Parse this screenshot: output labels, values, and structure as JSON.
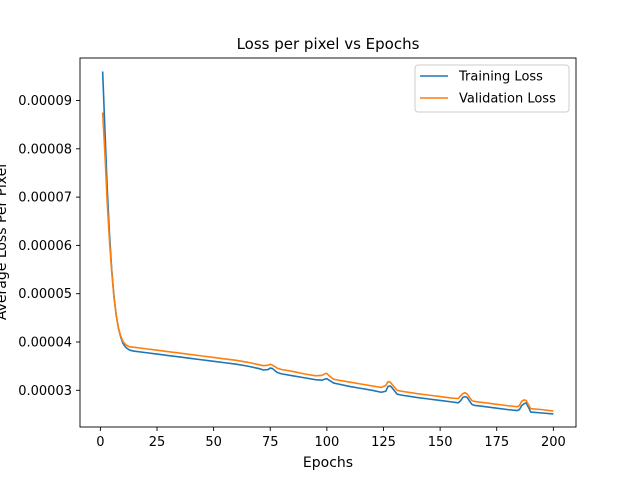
{
  "chart_data": {
    "type": "line",
    "title": "Loss per pixel vs Epochs",
    "xlabel": "Epochs",
    "ylabel": "Average Loss Per Pixel",
    "xlim": [
      -9,
      210
    ],
    "ylim": [
      2.24e-05,
      9.88e-05
    ],
    "x_ticks": [
      0,
      25,
      50,
      75,
      100,
      125,
      150,
      175,
      200
    ],
    "x_tick_labels": [
      "0",
      "25",
      "50",
      "75",
      "100",
      "125",
      "150",
      "175",
      "200"
    ],
    "y_ticks": [
      3e-05,
      4e-05,
      5e-05,
      6e-05,
      7e-05,
      8e-05,
      9e-05
    ],
    "y_tick_labels": [
      "0.00003",
      "0.00004",
      "0.00005",
      "0.00006",
      "0.00007",
      "0.00008",
      "0.00009"
    ],
    "grid": false,
    "legend_position": "upper right",
    "series": [
      {
        "name": "Training Loss",
        "color": "#1f77b4",
        "points": [
          [
            1,
            9.6e-05
          ],
          [
            2,
            8.4e-05
          ],
          [
            3,
            7.2e-05
          ],
          [
            4,
            6.25e-05
          ],
          [
            5,
            5.5e-05
          ],
          [
            6,
            4.95e-05
          ],
          [
            7,
            4.55e-05
          ],
          [
            8,
            4.28e-05
          ],
          [
            9,
            4.1e-05
          ],
          [
            10,
            3.97e-05
          ],
          [
            11,
            3.9e-05
          ],
          [
            12,
            3.86e-05
          ],
          [
            13,
            3.83e-05
          ],
          [
            15,
            3.81e-05
          ],
          [
            20,
            3.78e-05
          ],
          [
            25,
            3.75e-05
          ],
          [
            30,
            3.72e-05
          ],
          [
            35,
            3.69e-05
          ],
          [
            40,
            3.66e-05
          ],
          [
            45,
            3.63e-05
          ],
          [
            50,
            3.6e-05
          ],
          [
            55,
            3.57e-05
          ],
          [
            60,
            3.54e-05
          ],
          [
            65,
            3.5e-05
          ],
          [
            70,
            3.45e-05
          ],
          [
            72,
            3.42e-05
          ],
          [
            74,
            3.43e-05
          ],
          [
            75,
            3.46e-05
          ],
          [
            76,
            3.45e-05
          ],
          [
            78,
            3.37e-05
          ],
          [
            80,
            3.34e-05
          ],
          [
            85,
            3.3e-05
          ],
          [
            90,
            3.26e-05
          ],
          [
            95,
            3.22e-05
          ],
          [
            98,
            3.21e-05
          ],
          [
            99,
            3.23e-05
          ],
          [
            100,
            3.24e-05
          ],
          [
            101,
            3.21e-05
          ],
          [
            103,
            3.15e-05
          ],
          [
            105,
            3.13e-05
          ],
          [
            110,
            3.08e-05
          ],
          [
            115,
            3.04e-05
          ],
          [
            120,
            3e-05
          ],
          [
            124,
            2.96e-05
          ],
          [
            126,
            2.98e-05
          ],
          [
            127,
            3.08e-05
          ],
          [
            128,
            3.09e-05
          ],
          [
            129,
            3.04e-05
          ],
          [
            131,
            2.92e-05
          ],
          [
            133,
            2.9e-05
          ],
          [
            140,
            2.85e-05
          ],
          [
            145,
            2.82e-05
          ],
          [
            150,
            2.79e-05
          ],
          [
            155,
            2.76e-05
          ],
          [
            158,
            2.74e-05
          ],
          [
            159,
            2.78e-05
          ],
          [
            160,
            2.85e-05
          ],
          [
            161,
            2.87e-05
          ],
          [
            162,
            2.85e-05
          ],
          [
            164,
            2.71e-05
          ],
          [
            165,
            2.69e-05
          ],
          [
            170,
            2.66e-05
          ],
          [
            175,
            2.63e-05
          ],
          [
            180,
            2.6e-05
          ],
          [
            184,
            2.58e-05
          ],
          [
            185,
            2.6e-05
          ],
          [
            186,
            2.68e-05
          ],
          [
            187,
            2.72e-05
          ],
          [
            188,
            2.74e-05
          ],
          [
            189,
            2.65e-05
          ],
          [
            190,
            2.55e-05
          ],
          [
            195,
            2.53e-05
          ],
          [
            200,
            2.51e-05
          ]
        ]
      },
      {
        "name": "Validation Loss",
        "color": "#ff7f0e",
        "points": [
          [
            1,
            8.75e-05
          ],
          [
            2,
            7.9e-05
          ],
          [
            3,
            6.9e-05
          ],
          [
            4,
            6.1e-05
          ],
          [
            5,
            5.45e-05
          ],
          [
            6,
            4.92e-05
          ],
          [
            7,
            4.55e-05
          ],
          [
            8,
            4.28e-05
          ],
          [
            9,
            4.12e-05
          ],
          [
            10,
            4.01e-05
          ],
          [
            11,
            3.95e-05
          ],
          [
            12,
            3.92e-05
          ],
          [
            13,
            3.9e-05
          ],
          [
            15,
            3.89e-05
          ],
          [
            20,
            3.86e-05
          ],
          [
            25,
            3.83e-05
          ],
          [
            30,
            3.8e-05
          ],
          [
            35,
            3.77e-05
          ],
          [
            40,
            3.74e-05
          ],
          [
            45,
            3.71e-05
          ],
          [
            50,
            3.68e-05
          ],
          [
            55,
            3.65e-05
          ],
          [
            60,
            3.62e-05
          ],
          [
            65,
            3.58e-05
          ],
          [
            70,
            3.53e-05
          ],
          [
            72,
            3.51e-05
          ],
          [
            74,
            3.52e-05
          ],
          [
            75,
            3.54e-05
          ],
          [
            76,
            3.52e-05
          ],
          [
            78,
            3.46e-05
          ],
          [
            80,
            3.43e-05
          ],
          [
            85,
            3.39e-05
          ],
          [
            90,
            3.34e-05
          ],
          [
            95,
            3.3e-05
          ],
          [
            98,
            3.31e-05
          ],
          [
            99,
            3.34e-05
          ],
          [
            100,
            3.35e-05
          ],
          [
            101,
            3.3e-05
          ],
          [
            103,
            3.23e-05
          ],
          [
            105,
            3.21e-05
          ],
          [
            110,
            3.17e-05
          ],
          [
            115,
            3.13e-05
          ],
          [
            120,
            3.09e-05
          ],
          [
            124,
            3.06e-05
          ],
          [
            126,
            3.1e-05
          ],
          [
            127,
            3.18e-05
          ],
          [
            128,
            3.17e-05
          ],
          [
            129,
            3.11e-05
          ],
          [
            131,
            3e-05
          ],
          [
            133,
            2.98e-05
          ],
          [
            140,
            2.93e-05
          ],
          [
            145,
            2.9e-05
          ],
          [
            150,
            2.87e-05
          ],
          [
            155,
            2.84e-05
          ],
          [
            158,
            2.83e-05
          ],
          [
            159,
            2.88e-05
          ],
          [
            160,
            2.93e-05
          ],
          [
            161,
            2.95e-05
          ],
          [
            162,
            2.92e-05
          ],
          [
            164,
            2.79e-05
          ],
          [
            165,
            2.77e-05
          ],
          [
            170,
            2.74e-05
          ],
          [
            175,
            2.71e-05
          ],
          [
            180,
            2.68e-05
          ],
          [
            184,
            2.66e-05
          ],
          [
            185,
            2.68e-05
          ],
          [
            186,
            2.77e-05
          ],
          [
            187,
            2.8e-05
          ],
          [
            188,
            2.79e-05
          ],
          [
            189,
            2.7e-05
          ],
          [
            190,
            2.62e-05
          ],
          [
            195,
            2.6e-05
          ],
          [
            200,
            2.57e-05
          ]
        ]
      }
    ]
  }
}
